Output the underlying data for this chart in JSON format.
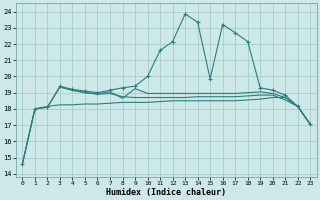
{
  "xlabel": "Humidex (Indice chaleur)",
  "bg_color": "#cce8e8",
  "grid_color": "#aacccc",
  "line_color": "#2e7d7d",
  "xlim": [
    -0.5,
    23.5
  ],
  "ylim": [
    13.8,
    24.5
  ],
  "yticks": [
    14,
    15,
    16,
    17,
    18,
    19,
    20,
    21,
    22,
    23,
    24
  ],
  "xticks": [
    0,
    1,
    2,
    3,
    4,
    5,
    6,
    7,
    8,
    9,
    10,
    11,
    12,
    13,
    14,
    15,
    16,
    17,
    18,
    19,
    20,
    21,
    22,
    23
  ],
  "lines": [
    {
      "x": [
        0,
        1,
        2,
        3,
        4,
        5,
        6,
        7,
        8,
        9,
        10,
        11,
        12,
        13,
        14,
        15,
        16,
        17,
        18,
        19,
        20,
        21,
        22,
        23
      ],
      "y": [
        14.6,
        18.0,
        18.1,
        19.4,
        19.2,
        19.1,
        19.0,
        19.15,
        19.3,
        19.4,
        20.0,
        21.6,
        22.15,
        23.85,
        23.35,
        19.85,
        23.2,
        22.7,
        22.15,
        19.3,
        19.15,
        18.85,
        18.15,
        17.05
      ],
      "marker": true
    },
    {
      "x": [
        0,
        1,
        2,
        3,
        4,
        5,
        6,
        7,
        8,
        9,
        10,
        11,
        12,
        13,
        14,
        15,
        16,
        17,
        18,
        19,
        20,
        21,
        22,
        23
      ],
      "y": [
        14.6,
        18.0,
        18.1,
        19.35,
        19.15,
        19.0,
        18.9,
        18.95,
        18.75,
        18.7,
        18.7,
        18.7,
        18.7,
        18.7,
        18.75,
        18.75,
        18.75,
        18.75,
        18.8,
        18.85,
        18.85,
        18.55,
        18.15,
        17.05
      ],
      "marker": false
    },
    {
      "x": [
        0,
        1,
        2,
        3,
        4,
        5,
        6,
        7,
        8,
        9,
        10,
        11,
        12,
        13,
        14,
        15,
        16,
        17,
        18,
        19,
        20,
        21,
        22,
        23
      ],
      "y": [
        14.6,
        18.0,
        18.15,
        18.25,
        18.25,
        18.3,
        18.3,
        18.35,
        18.4,
        18.4,
        18.4,
        18.45,
        18.5,
        18.5,
        18.5,
        18.5,
        18.5,
        18.5,
        18.55,
        18.6,
        18.7,
        18.7,
        18.15,
        17.05
      ],
      "marker": false
    },
    {
      "x": [
        3,
        4,
        5,
        6,
        7,
        8,
        9,
        10,
        11,
        12,
        13,
        14,
        15,
        16,
        17,
        18,
        19,
        20,
        21,
        22,
        23
      ],
      "y": [
        19.35,
        19.15,
        19.0,
        18.95,
        19.05,
        18.65,
        19.25,
        18.95,
        18.95,
        18.95,
        18.95,
        18.95,
        18.95,
        18.95,
        18.95,
        19.0,
        19.05,
        18.95,
        18.7,
        18.15,
        17.05
      ],
      "marker": false
    }
  ]
}
